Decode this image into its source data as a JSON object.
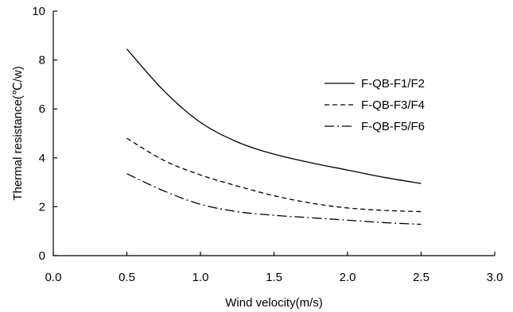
{
  "chart_data": {
    "type": "line",
    "title": "",
    "xlabel": "Wind velocity(m/s)",
    "ylabel": "Thermal resistance(℃/w)",
    "xlim": [
      0.0,
      3.0
    ],
    "ylim": [
      0,
      10
    ],
    "xticks": [
      "0.0",
      "0.5",
      "1.0",
      "1.5",
      "2.0",
      "2.5",
      "3.0"
    ],
    "yticks": [
      "0",
      "2",
      "4",
      "6",
      "8",
      "10"
    ],
    "grid": false,
    "legend_position": "right",
    "series": [
      {
        "name": "F-QB-F1/F2",
        "style": "solid",
        "color": "#000000",
        "x": [
          0.5,
          0.75,
          1.0,
          1.25,
          1.5,
          1.75,
          2.0,
          2.25,
          2.5
        ],
        "y": [
          8.45,
          6.75,
          5.45,
          4.65,
          4.15,
          3.8,
          3.5,
          3.2,
          2.95
        ]
      },
      {
        "name": "F-QB-F3/F4",
        "style": "dashed",
        "color": "#000000",
        "x": [
          0.5,
          0.75,
          1.0,
          1.25,
          1.5,
          1.75,
          2.0,
          2.25,
          2.5
        ],
        "y": [
          4.8,
          3.9,
          3.3,
          2.85,
          2.45,
          2.15,
          1.95,
          1.85,
          1.8
        ]
      },
      {
        "name": "F-QB-F5/F6",
        "style": "dashdot",
        "color": "#000000",
        "x": [
          0.5,
          0.75,
          1.0,
          1.25,
          1.5,
          1.75,
          2.0,
          2.25,
          2.5
        ],
        "y": [
          3.35,
          2.65,
          2.1,
          1.8,
          1.65,
          1.55,
          1.45,
          1.35,
          1.28
        ]
      }
    ]
  }
}
